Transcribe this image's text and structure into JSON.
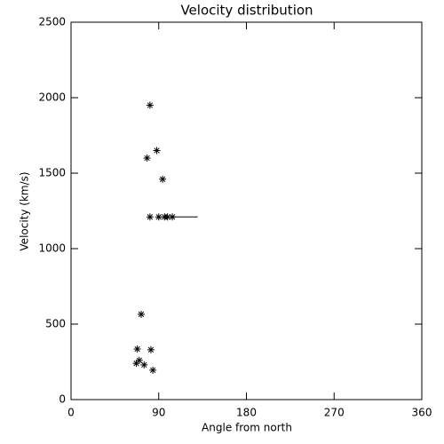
{
  "chart_data": {
    "type": "scatter",
    "title": "Velocity distribution",
    "x_label": "Angle from north",
    "y_label": "Velocity (km/s)",
    "xlim": [
      0,
      360
    ],
    "xticks": [
      0,
      90,
      180,
      270,
      360
    ],
    "ylim": [
      0,
      2500
    ],
    "yticks": [
      0,
      500,
      1000,
      1500,
      2000,
      2500
    ],
    "color": "#000000",
    "marker": "asterisk",
    "x": [
      81,
      88,
      78,
      94,
      81,
      90,
      96,
      99,
      104,
      72,
      68,
      82,
      70,
      67,
      75,
      84
    ],
    "values": [
      1950,
      1650,
      1600,
      1460,
      1210,
      1210,
      1210,
      1210,
      1210,
      565,
      335,
      330,
      260,
      240,
      230,
      195
    ],
    "segments": [
      {
        "x": [
          97,
          130
        ],
        "y": [
          1210,
          1210
        ]
      }
    ]
  }
}
